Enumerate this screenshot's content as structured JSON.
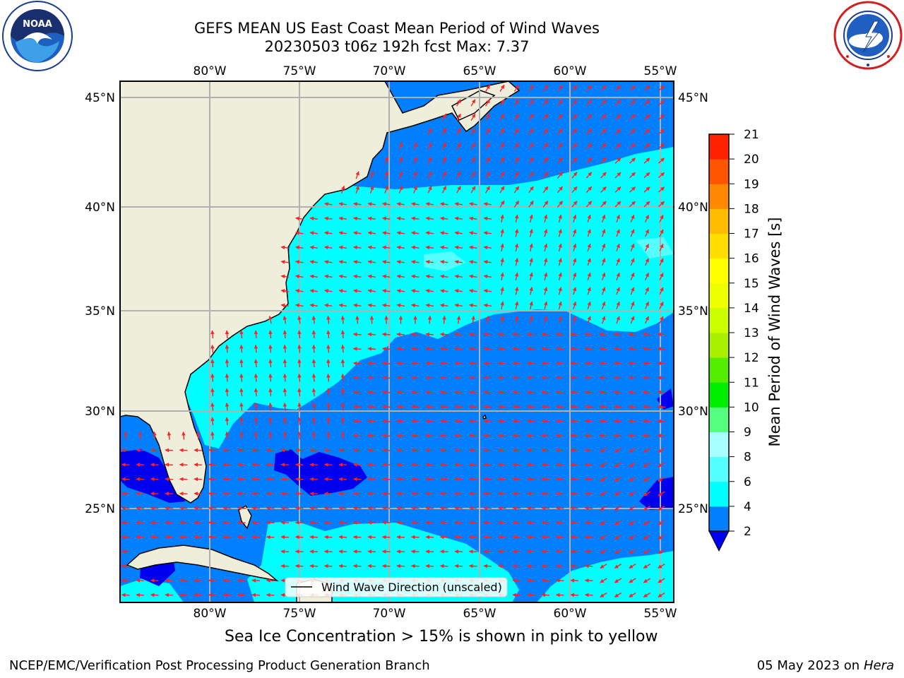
{
  "header": {
    "title_line1": "GEFS MEAN US East Coast Mean Period of Wind Waves",
    "title_line2": "20230503 t06z 192h fcst   Max: 7.37"
  },
  "logos": {
    "left": {
      "name": "noaa-logo",
      "text": "NOAA",
      "ring_text": "NATIONAL OCEANIC AND ATMOSPHERIC ADMINISTRATION · U.S. DEPARTMENT OF COMMERCE"
    },
    "right": {
      "name": "nws-logo",
      "ring_text": "NATIONAL WEATHER SERVICE"
    }
  },
  "map": {
    "lon_labels": [
      "80°W",
      "75°W",
      "70°W",
      "65°W",
      "60°W",
      "55°W"
    ],
    "lat_labels": [
      "45°N",
      "40°N",
      "35°N",
      "30°N",
      "25°N"
    ],
    "legend_label": "Wind Wave Direction (unscaled)",
    "colors": {
      "land": "#efeedb",
      "level_0_2": "#0000ee",
      "level_2_4": "#0080ff",
      "level_4_6": "#00ffff",
      "level_6_8": "#55ffff",
      "arrow": "#ff2020",
      "grid": "#b0b0b0"
    }
  },
  "colorbar": {
    "label": "Mean Period of Wind Waves [s]",
    "ticks": [
      "2",
      "4",
      "6",
      "8",
      "9",
      "10",
      "11",
      "12",
      "13",
      "14",
      "15",
      "16",
      "17",
      "18",
      "19",
      "20",
      "21"
    ],
    "colors": [
      "#0080ff",
      "#00ffff",
      "#55ffff",
      "#a8ffff",
      "#55ff80",
      "#00ee00",
      "#55ee00",
      "#aaee00",
      "#ccff00",
      "#eeff00",
      "#ffff00",
      "#ffdd00",
      "#ffbb00",
      "#ff8800",
      "#ff5500",
      "#ff2200"
    ],
    "under_color": "#0000ee"
  },
  "footer": {
    "sea_ice_note": "Sea Ice Concentration > 15% is shown in pink to yellow",
    "left": "NCEP/EMC/Verification Post Processing Product Generation Branch",
    "right_date": "05 May 2023 on",
    "right_machine": "Hera"
  }
}
